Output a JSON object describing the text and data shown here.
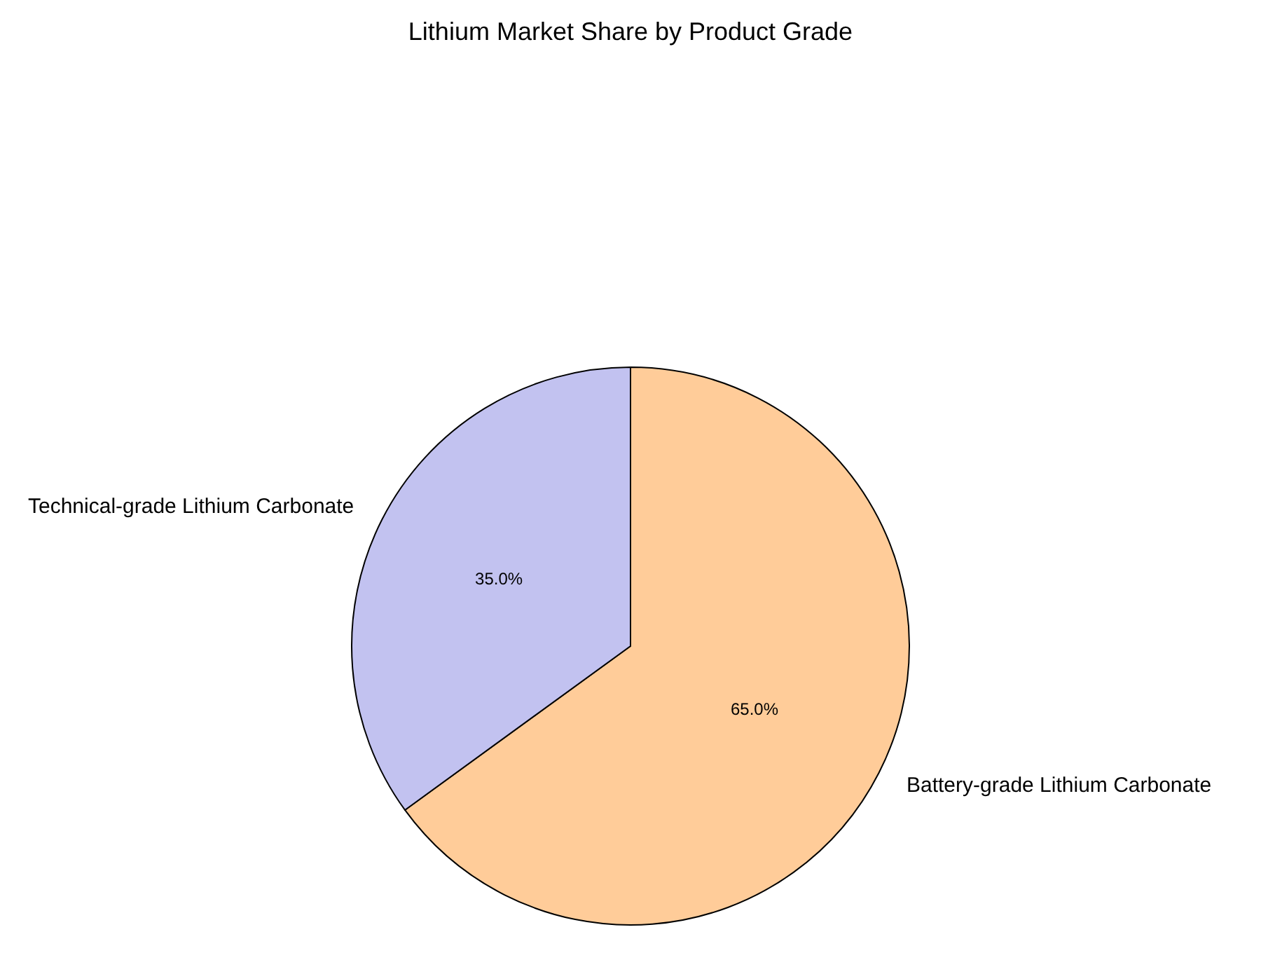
{
  "chart_data": {
    "type": "pie",
    "title": "Lithium Market Share by Product Grade",
    "categories": [
      "Battery-grade Lithium Carbonate",
      "Technical-grade Lithium Carbonate"
    ],
    "values": [
      65,
      35
    ],
    "colors": [
      "#ffcc99",
      "#c2c2f0"
    ],
    "value_labels": [
      "65.0%",
      "35.0%"
    ],
    "legend": false
  }
}
